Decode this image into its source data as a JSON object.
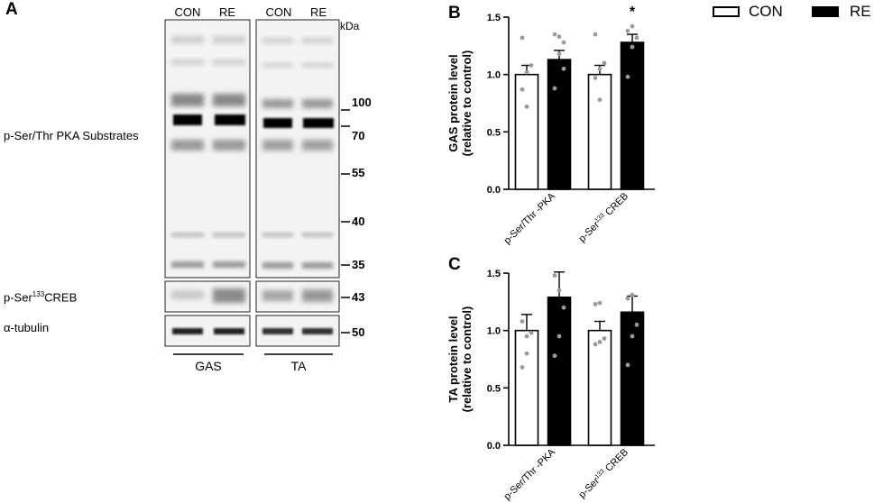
{
  "panels": {
    "a": "A",
    "b": "B",
    "c": "C"
  },
  "legend": {
    "items": [
      {
        "label": "CON",
        "fill": "#ffffff"
      },
      {
        "label": "RE",
        "fill": "#000000"
      }
    ]
  },
  "blot": {
    "kda_header": "kDa",
    "lane_labels": [
      "CON",
      "RE",
      "CON",
      "RE"
    ],
    "row_labels": {
      "pka": "p-Ser/Thr PKA Substrates",
      "creb_prefix": "p-Ser",
      "creb_sup": "133",
      "creb_suffix": "CREB",
      "tubulin": "α-tubulin"
    },
    "markers": [
      "100",
      "70",
      "55",
      "40",
      "35"
    ],
    "creb_marker": "43",
    "tubulin_marker": "50",
    "groups": [
      "GAS",
      "TA"
    ]
  },
  "chart_data": [
    {
      "type": "bar",
      "panel": "B",
      "ylabel": "GAS protein level (relative to control)",
      "ylabel_line1": "GAS protein level",
      "ylabel_line2": "(relative to control)",
      "categories": [
        "p-Ser/Thr -PKA",
        "p-Ser133 CREB"
      ],
      "cat_labels": [
        {
          "main": "p-Ser/Thr -PKA",
          "sup": "",
          "suffix": ""
        },
        {
          "main": "p-Ser",
          "sup": "133",
          "suffix": " CREB"
        }
      ],
      "ylim": [
        0,
        1.5
      ],
      "yticks": [
        "0.0",
        "0.5",
        "1.0",
        "1.5"
      ],
      "series": [
        {
          "name": "CON",
          "values": [
            1.0,
            1.0
          ],
          "errors": [
            0.08,
            0.08
          ],
          "points": [
            [
              0.87,
              1.02,
              1.08,
              1.32,
              0.72
            ],
            [
              0.97,
              1.05,
              1.1,
              1.35,
              0.78
            ]
          ]
        },
        {
          "name": "RE",
          "values": [
            1.13,
            1.28
          ],
          "errors": [
            0.08,
            0.07
          ],
          "points": [
            [
              0.88,
              1.18,
              1.28,
              1.35,
              1.33,
              1.05
            ],
            [
              0.98,
              1.24,
              1.32,
              1.38,
              1.42
            ]
          ]
        }
      ],
      "annotations": [
        {
          "text": "*",
          "category": 1,
          "series": 1
        }
      ]
    },
    {
      "type": "bar",
      "panel": "C",
      "ylabel": "TA protein level (relative to control)",
      "ylabel_line1": "TA protein level",
      "ylabel_line2": "(relative to control)",
      "categories": [
        "p-Ser/Thr -PKA",
        "p-Ser133 CREB"
      ],
      "cat_labels": [
        {
          "main": "p-Ser/Thr -PKA",
          "sup": "",
          "suffix": ""
        },
        {
          "main": "p-Ser",
          "sup": "133",
          "suffix": " CREB"
        }
      ],
      "ylim": [
        0,
        1.5
      ],
      "yticks": [
        "0.0",
        "0.5",
        "1.0",
        "1.5"
      ],
      "series": [
        {
          "name": "CON",
          "values": [
            1.0,
            1.0
          ],
          "errors": [
            0.14,
            0.08
          ],
          "points": [
            [
              0.68,
              0.8,
              0.98,
              1.08,
              0.95
            ],
            [
              0.88,
              0.9,
              0.93,
              1.23,
              1.24
            ]
          ]
        },
        {
          "name": "RE",
          "values": [
            1.29,
            1.16
          ],
          "errors": [
            0.22,
            0.14
          ],
          "points": [
            [
              0.78,
              0.95,
              1.2,
              1.48,
              1.35
            ],
            [
              0.7,
              0.95,
              1.05,
              1.28,
              1.31
            ]
          ]
        }
      ],
      "annotations": []
    }
  ]
}
